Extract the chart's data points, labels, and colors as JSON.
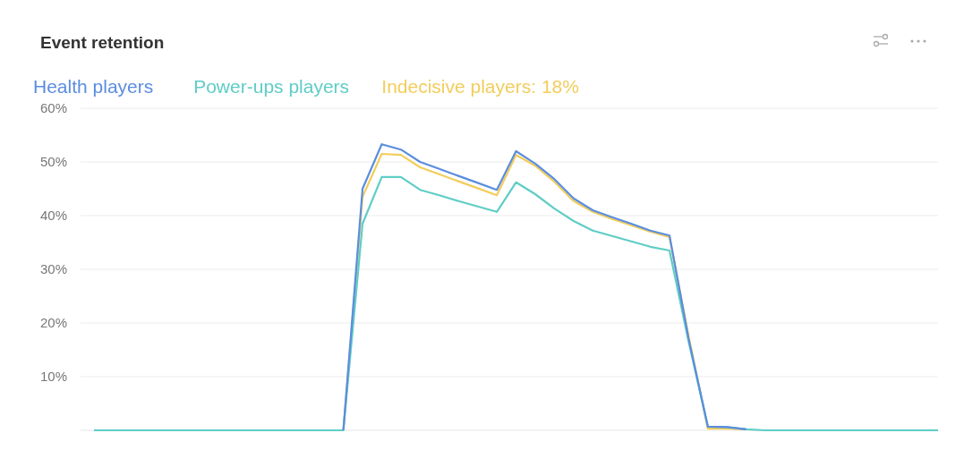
{
  "chart_data": {
    "type": "line",
    "title": "Event retention",
    "categories": [
      null,
      null,
      null,
      null,
      null,
      null,
      null,
      null,
      null,
      null,
      null,
      null,
      null,
      null,
      null,
      null,
      null,
      null,
      null,
      null,
      null,
      null,
      null,
      null,
      null,
      null,
      null,
      null,
      null,
      null,
      null,
      null,
      null,
      null,
      null,
      null,
      null,
      null,
      null,
      null,
      null,
      null,
      null,
      null,
      null
    ],
    "series": [
      {
        "name": "Health players",
        "color": "#5b8ddf",
        "values": [
          null,
          null,
          null,
          null,
          null,
          null,
          null,
          null,
          null,
          null,
          null,
          null,
          null,
          0,
          45,
          53.3,
          52.3,
          50,
          48.7,
          47.4,
          46.1,
          44.8,
          52,
          49.7,
          46.8,
          43.2,
          41,
          39.7,
          38.5,
          37.2,
          36.3,
          17,
          0.7,
          0.6,
          0.2,
          null,
          null,
          null,
          null,
          null,
          null,
          null,
          null,
          null,
          null
        ]
      },
      {
        "name": "Power-ups players",
        "color": "#5fcdc6",
        "values": [
          0,
          0,
          0,
          0,
          0,
          0,
          0,
          0,
          0,
          0,
          0,
          0,
          0,
          0,
          38.5,
          47.2,
          47.2,
          44.8,
          43.8,
          42.7,
          41.7,
          40.7,
          46.2,
          44,
          41.3,
          39,
          37.2,
          36.2,
          35.2,
          34.2,
          33.5,
          16.5,
          0.7,
          0.6,
          0.2,
          0,
          0,
          0,
          0,
          0,
          0,
          0,
          0,
          0,
          0
        ]
      },
      {
        "name": "Indecisive players: 18%",
        "color": "#f2cd5c",
        "values": [
          null,
          null,
          null,
          null,
          null,
          null,
          null,
          null,
          null,
          null,
          null,
          null,
          null,
          0,
          43.5,
          51.5,
          51.3,
          49,
          47.7,
          46.4,
          45.1,
          43.8,
          51.3,
          49.3,
          46.3,
          42.7,
          40.7,
          39.4,
          38.2,
          37,
          36,
          17.5,
          0.3,
          0.3,
          0.2,
          null,
          null,
          null,
          null,
          null,
          null,
          null,
          null,
          null,
          null
        ]
      }
    ],
    "ylim": [
      0,
      60
    ],
    "yticks": [
      {
        "value": 10,
        "label": "10%"
      },
      {
        "value": 20,
        "label": "20%"
      },
      {
        "value": 30,
        "label": "30%"
      },
      {
        "value": 40,
        "label": "40%"
      },
      {
        "value": 50,
        "label": "50%"
      },
      {
        "value": 60,
        "label": "60%"
      }
    ],
    "grid": "y",
    "legend": "top left",
    "marker": "none",
    "line_style": "solid"
  }
}
